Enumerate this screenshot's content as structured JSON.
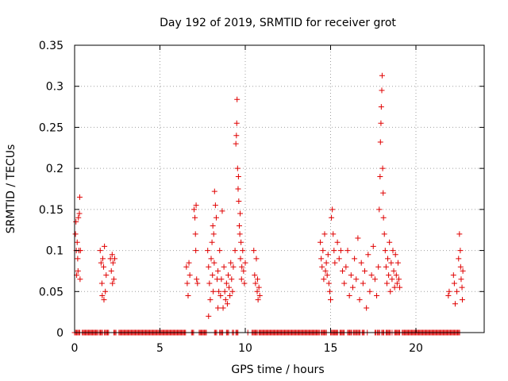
{
  "chart_data": {
    "type": "scatter",
    "title": "Day 192 of 2019, SRMTID for receiver grot",
    "xlabel": "GPS time / hours",
    "ylabel": "SRMTID / TECUs",
    "xlim": [
      0,
      24
    ],
    "ylim": [
      0,
      0.35
    ],
    "xticks": [
      0,
      5,
      10,
      15,
      20
    ],
    "yticks": [
      0,
      0.05,
      0.1,
      0.15,
      0.2,
      0.25,
      0.3,
      0.35
    ],
    "ytick_labels": [
      "0",
      "0.05",
      "0.1",
      "0.15",
      "0.2",
      "0.25",
      "0.3",
      "0.35"
    ],
    "grid": true,
    "marker": "+",
    "color": "#e00000",
    "series": [
      {
        "name": "SRMTID",
        "points": [
          [
            0.05,
            0.12
          ],
          [
            0.08,
            0.135
          ],
          [
            0.1,
            0.1
          ],
          [
            0.12,
            0.07
          ],
          [
            0.15,
            0.11
          ],
          [
            0.18,
            0.09
          ],
          [
            0.2,
            0.075
          ],
          [
            0.22,
            0.14
          ],
          [
            0.25,
            0.1
          ],
          [
            0.28,
            0.145
          ],
          [
            0.3,
            0.165
          ],
          [
            0.32,
            0.065
          ],
          [
            0.34,
            0.1
          ],
          [
            1.5,
            0.1
          ],
          [
            1.55,
            0.085
          ],
          [
            1.6,
            0.06
          ],
          [
            1.62,
            0.045
          ],
          [
            1.65,
            0.09
          ],
          [
            1.7,
            0.08
          ],
          [
            1.72,
            0.04
          ],
          [
            1.75,
            0.105
          ],
          [
            1.8,
            0.05
          ],
          [
            1.85,
            0.07
          ],
          [
            2.1,
            0.09
          ],
          [
            2.15,
            0.075
          ],
          [
            2.2,
            0.095
          ],
          [
            2.22,
            0.06
          ],
          [
            2.25,
            0.085
          ],
          [
            2.3,
            0.065
          ],
          [
            2.35,
            0.09
          ],
          [
            6.55,
            0.08
          ],
          [
            6.6,
            0.06
          ],
          [
            6.65,
            0.045
          ],
          [
            6.7,
            0.085
          ],
          [
            6.75,
            0.07
          ],
          [
            7.0,
            0.15
          ],
          [
            7.05,
            0.14
          ],
          [
            7.08,
            0.12
          ],
          [
            7.1,
            0.1
          ],
          [
            7.12,
            0.155
          ],
          [
            7.15,
            0.065
          ],
          [
            7.2,
            0.06
          ],
          [
            7.8,
            0.1
          ],
          [
            7.85,
            0.08
          ],
          [
            7.9,
            0.06
          ],
          [
            7.95,
            0.04
          ],
          [
            8.0,
            0.09
          ],
          [
            8.05,
            0.11
          ],
          [
            8.08,
            0.07
          ],
          [
            8.1,
            0.13
          ],
          [
            8.12,
            0.05
          ],
          [
            8.15,
            0.12
          ],
          [
            8.18,
            0.085
          ],
          [
            8.2,
            0.172
          ],
          [
            8.25,
            0.155
          ],
          [
            8.3,
            0.14
          ],
          [
            8.35,
            0.065
          ],
          [
            8.4,
            0.075
          ],
          [
            8.45,
            0.05
          ],
          [
            8.5,
            0.1
          ],
          [
            8.55,
            0.045
          ],
          [
            8.6,
            0.065
          ],
          [
            8.65,
            0.148
          ],
          [
            8.7,
            0.03
          ],
          [
            8.75,
            0.08
          ],
          [
            8.8,
            0.05
          ],
          [
            8.85,
            0.04
          ],
          [
            8.9,
            0.06
          ],
          [
            8.95,
            0.035
          ],
          [
            9.0,
            0.07
          ],
          [
            9.05,
            0.055
          ],
          [
            9.1,
            0.045
          ],
          [
            9.15,
            0.085
          ],
          [
            9.2,
            0.065
          ],
          [
            9.25,
            0.05
          ],
          [
            9.3,
            0.08
          ],
          [
            7.85,
            0.02
          ],
          [
            8.4,
            0.03
          ],
          [
            9.4,
            0.1
          ],
          [
            9.45,
            0.23
          ],
          [
            9.48,
            0.24
          ],
          [
            9.5,
            0.255
          ],
          [
            9.52,
            0.284
          ],
          [
            9.55,
            0.2
          ],
          [
            9.58,
            0.175
          ],
          [
            9.6,
            0.19
          ],
          [
            9.62,
            0.16
          ],
          [
            9.65,
            0.13
          ],
          [
            9.68,
            0.12
          ],
          [
            9.7,
            0.145
          ],
          [
            9.72,
            0.09
          ],
          [
            9.75,
            0.11
          ],
          [
            9.78,
            0.065
          ],
          [
            9.8,
            0.08
          ],
          [
            9.85,
            0.1
          ],
          [
            9.9,
            0.075
          ],
          [
            9.95,
            0.06
          ],
          [
            10.0,
            0.085
          ],
          [
            10.5,
            0.1
          ],
          [
            10.55,
            0.07
          ],
          [
            10.6,
            0.06
          ],
          [
            10.65,
            0.09
          ],
          [
            10.7,
            0.05
          ],
          [
            10.72,
            0.065
          ],
          [
            10.75,
            0.04
          ],
          [
            10.8,
            0.055
          ],
          [
            10.85,
            0.045
          ],
          [
            14.4,
            0.11
          ],
          [
            14.45,
            0.09
          ],
          [
            14.5,
            0.08
          ],
          [
            14.55,
            0.1
          ],
          [
            14.6,
            0.065
          ],
          [
            14.65,
            0.12
          ],
          [
            14.7,
            0.075
          ],
          [
            14.75,
            0.085
          ],
          [
            14.8,
            0.07
          ],
          [
            14.85,
            0.095
          ],
          [
            14.9,
            0.06
          ],
          [
            14.95,
            0.05
          ],
          [
            15.0,
            0.04
          ],
          [
            15.05,
            0.14
          ],
          [
            15.1,
            0.15
          ],
          [
            15.15,
            0.12
          ],
          [
            15.2,
            0.1
          ],
          [
            15.25,
            0.085
          ],
          [
            15.4,
            0.11
          ],
          [
            15.5,
            0.09
          ],
          [
            15.6,
            0.1
          ],
          [
            15.7,
            0.075
          ],
          [
            15.8,
            0.06
          ],
          [
            15.9,
            0.08
          ],
          [
            16.0,
            0.1
          ],
          [
            16.1,
            0.045
          ],
          [
            16.2,
            0.07
          ],
          [
            16.3,
            0.055
          ],
          [
            16.4,
            0.09
          ],
          [
            16.5,
            0.065
          ],
          [
            16.6,
            0.115
          ],
          [
            16.7,
            0.04
          ],
          [
            16.8,
            0.085
          ],
          [
            16.9,
            0.06
          ],
          [
            17.0,
            0.075
          ],
          [
            17.1,
            0.03
          ],
          [
            17.2,
            0.095
          ],
          [
            17.3,
            0.05
          ],
          [
            17.4,
            0.07
          ],
          [
            17.5,
            0.105
          ],
          [
            17.6,
            0.065
          ],
          [
            17.7,
            0.045
          ],
          [
            17.8,
            0.08
          ],
          [
            17.85,
            0.15
          ],
          [
            17.9,
            0.19
          ],
          [
            17.92,
            0.232
          ],
          [
            17.95,
            0.255
          ],
          [
            17.97,
            0.275
          ],
          [
            18.0,
            0.295
          ],
          [
            18.02,
            0.313
          ],
          [
            18.05,
            0.2
          ],
          [
            18.08,
            0.17
          ],
          [
            18.1,
            0.14
          ],
          [
            18.15,
            0.12
          ],
          [
            18.2,
            0.1
          ],
          [
            18.25,
            0.08
          ],
          [
            18.3,
            0.06
          ],
          [
            18.35,
            0.09
          ],
          [
            18.4,
            0.07
          ],
          [
            18.45,
            0.11
          ],
          [
            18.5,
            0.05
          ],
          [
            18.55,
            0.085
          ],
          [
            18.6,
            0.065
          ],
          [
            18.65,
            0.1
          ],
          [
            18.7,
            0.075
          ],
          [
            18.75,
            0.055
          ],
          [
            18.8,
            0.095
          ],
          [
            18.85,
            0.07
          ],
          [
            18.9,
            0.06
          ],
          [
            18.95,
            0.085
          ],
          [
            19.0,
            0.065
          ],
          [
            19.05,
            0.055
          ],
          [
            21.9,
            0.045
          ],
          [
            21.95,
            0.05
          ],
          [
            22.2,
            0.07
          ],
          [
            22.25,
            0.06
          ],
          [
            22.3,
            0.035
          ],
          [
            22.4,
            0.05
          ],
          [
            22.5,
            0.09
          ],
          [
            22.55,
            0.12
          ],
          [
            22.6,
            0.1
          ],
          [
            22.62,
            0.08
          ],
          [
            22.65,
            0.065
          ],
          [
            22.7,
            0.055
          ],
          [
            22.72,
            0.04
          ],
          [
            22.75,
            0.075
          ]
        ],
        "zero_ranges": [
          [
            0.0,
            0.3
          ],
          [
            0.45,
            1.35
          ],
          [
            1.45,
            1.65
          ],
          [
            1.75,
            2.0
          ],
          [
            2.3,
            2.45
          ],
          [
            2.6,
            6.55
          ],
          [
            6.85,
            7.0
          ],
          [
            7.3,
            7.75
          ],
          [
            8.2,
            8.35
          ],
          [
            8.5,
            8.7
          ],
          [
            8.9,
            9.05
          ],
          [
            9.25,
            9.35
          ],
          [
            9.45,
            9.6
          ],
          [
            10.15,
            10.2
          ],
          [
            10.4,
            10.7
          ],
          [
            10.8,
            14.35
          ],
          [
            14.45,
            14.75
          ],
          [
            15.0,
            15.3
          ],
          [
            15.35,
            15.45
          ],
          [
            15.55,
            15.8
          ],
          [
            16.0,
            16.25
          ],
          [
            16.35,
            16.55
          ],
          [
            16.6,
            16.75
          ],
          [
            16.85,
            17.0
          ],
          [
            17.15,
            17.2
          ],
          [
            17.6,
            17.7
          ],
          [
            17.75,
            17.9
          ],
          [
            18.0,
            18.15
          ],
          [
            18.25,
            18.5
          ],
          [
            18.6,
            18.65
          ],
          [
            18.75,
            19.05
          ],
          [
            19.2,
            22.6
          ]
        ]
      }
    ]
  }
}
